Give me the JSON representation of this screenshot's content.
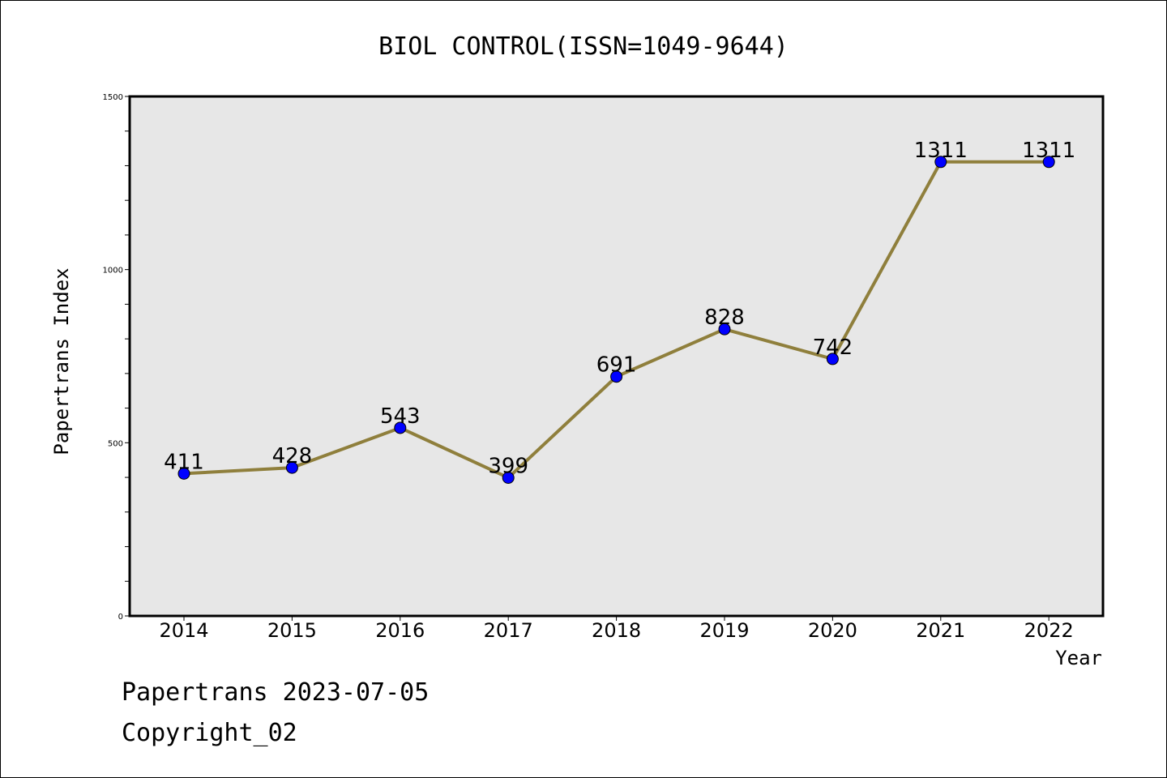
{
  "chart_data": {
    "type": "line",
    "title": "BIOL CONTROL(ISSN=1049-9644)",
    "xlabel": "Year",
    "ylabel": "Papertrans Index",
    "categories": [
      "2014",
      "2015",
      "2016",
      "2017",
      "2018",
      "2019",
      "2020",
      "2021",
      "2022"
    ],
    "values": [
      411,
      428,
      543,
      399,
      691,
      828,
      742,
      1311,
      1311
    ],
    "data_labels": [
      "411",
      "428",
      "543",
      "399",
      "691",
      "828",
      "742",
      "1311",
      "1311"
    ],
    "ylim": [
      0,
      1500
    ],
    "yticks": [
      0,
      500,
      1000,
      1500
    ],
    "ytick_labels": [
      "0",
      "500",
      "1000",
      "1500"
    ],
    "grid": false,
    "legend": "none",
    "colors": {
      "line": "#8f7f3c",
      "marker": "#0000ff",
      "plot_background": "#e7e7e7"
    }
  },
  "footer": {
    "line1": "Papertrans 2023-07-05",
    "line2": "Copyright_02"
  }
}
